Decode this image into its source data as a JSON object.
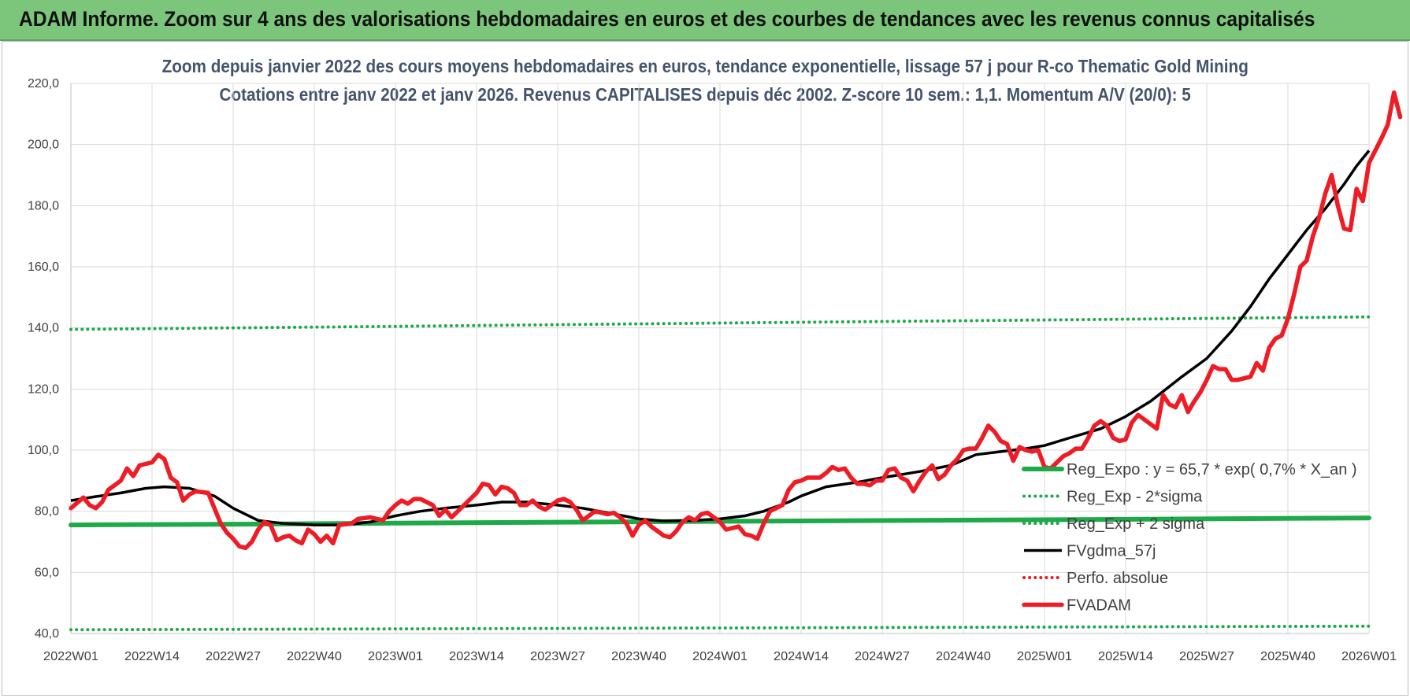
{
  "header": {
    "banner": "ADAM Informe. Zoom sur 4 ans des valorisations hebdomadaires en euros et des courbes de tendances avec les revenus connus capitalisés"
  },
  "chart_data": {
    "type": "line",
    "title": "Zoom depuis janvier 2022 des cours moyens hebdomadaires en euros, tendance exponentielle, lissage 57 j pour R-co Thematic Gold Mining",
    "subtitle": "Cotations entre janv 2022 et janv 2026. Revenus CAPITALISES depuis déc 2002. Z-score 10 sem.: 1,1. Momentum A/V (20/0): 5",
    "ylim": [
      40,
      220
    ],
    "y_ticks": [
      "220,0",
      "200,0",
      "180,0",
      "160,0",
      "140,0",
      "120,0",
      "100,0",
      "80,0",
      "60,0",
      "40,0"
    ],
    "x_ticks": [
      "2022W01",
      "2022W14",
      "2022W27",
      "2022W40",
      "2023W01",
      "2023W14",
      "2023W27",
      "2023W40",
      "2024W01",
      "2024W14",
      "2024W27",
      "2024W40",
      "2025W01",
      "2025W14",
      "2025W27",
      "2025W40",
      "2026W01"
    ],
    "x_tick_index": [
      0,
      13,
      26,
      39,
      52,
      65,
      78,
      91,
      104,
      117,
      130,
      143,
      156,
      169,
      182,
      195,
      208
    ],
    "grid": true,
    "legend_position": "right",
    "series": [
      {
        "name": "Reg_Expo : y = 65,7 * exp( 0,7% *  X_an )",
        "style": "solid-thick",
        "color": "#1faa4a",
        "points": [
          [
            0,
            75.5
          ],
          [
            30,
            75.8
          ],
          [
            52,
            76.1
          ],
          [
            104,
            76.7
          ],
          [
            156,
            77.2
          ],
          [
            208,
            77.8
          ]
        ]
      },
      {
        "name": "Reg_Exp - 2*sigma",
        "style": "dotted",
        "color": "#1faa4a",
        "points": [
          [
            0,
            41.2
          ],
          [
            104,
            41.8
          ],
          [
            208,
            42.4
          ]
        ]
      },
      {
        "name": "Reg_Exp + 2 sigma",
        "style": "dotted",
        "color": "#1faa4a",
        "points": [
          [
            0,
            139.5
          ],
          [
            52,
            140.5
          ],
          [
            104,
            141.6
          ],
          [
            156,
            142.6
          ],
          [
            208,
            143.6
          ]
        ]
      },
      {
        "name": "FVgdma_57j",
        "style": "solid",
        "color": "#000000",
        "points": [
          [
            0,
            83.5
          ],
          [
            4,
            84.8
          ],
          [
            8,
            86
          ],
          [
            12,
            87.5
          ],
          [
            15,
            88
          ],
          [
            19,
            87.5
          ],
          [
            23,
            85
          ],
          [
            26,
            81
          ],
          [
            30,
            77
          ],
          [
            34,
            76
          ],
          [
            39,
            75.5
          ],
          [
            44,
            75.5
          ],
          [
            48,
            76.5
          ],
          [
            52,
            78.5
          ],
          [
            56,
            80
          ],
          [
            60,
            81
          ],
          [
            65,
            82
          ],
          [
            69,
            83
          ],
          [
            73,
            83
          ],
          [
            78,
            82
          ],
          [
            82,
            81
          ],
          [
            86,
            79.5
          ],
          [
            91,
            77.5
          ],
          [
            95,
            76.8
          ],
          [
            100,
            77
          ],
          [
            104,
            77.5
          ],
          [
            108,
            78.5
          ],
          [
            111,
            80
          ],
          [
            115,
            83
          ],
          [
            117,
            85
          ],
          [
            121,
            88
          ],
          [
            126,
            89.5
          ],
          [
            130,
            91
          ],
          [
            136,
            93
          ],
          [
            141,
            95
          ],
          [
            145,
            98.5
          ],
          [
            149,
            99.5
          ],
          [
            153,
            100.5
          ],
          [
            156,
            101.5
          ],
          [
            160,
            104
          ],
          [
            165,
            107
          ],
          [
            169,
            111
          ],
          [
            173,
            116
          ],
          [
            178,
            124
          ],
          [
            182,
            130
          ],
          [
            186,
            139
          ],
          [
            189,
            147
          ],
          [
            192,
            156
          ],
          [
            195,
            164
          ],
          [
            198,
            172
          ],
          [
            201,
            179
          ],
          [
            204,
            187
          ],
          [
            206,
            193
          ],
          [
            208,
            198
          ]
        ]
      },
      {
        "name": "Perfo. absolue",
        "style": "dotted",
        "color": "#e81e25",
        "points": []
      },
      {
        "name": "FVADAM",
        "style": "solid-thick",
        "color": "#ee1c25",
        "points": [
          [
            0,
            81
          ],
          [
            2,
            84.5
          ],
          [
            3,
            82
          ],
          [
            4,
            81
          ],
          [
            5,
            83
          ],
          [
            6,
            87
          ],
          [
            8,
            90
          ],
          [
            9,
            94
          ],
          [
            10,
            91.5
          ],
          [
            11,
            95
          ],
          [
            12,
            95.5
          ],
          [
            13,
            96
          ],
          [
            14,
            98.5
          ],
          [
            15,
            97
          ],
          [
            16,
            91
          ],
          [
            17,
            89.5
          ],
          [
            18,
            83.5
          ],
          [
            19,
            85.5
          ],
          [
            20,
            86.5
          ],
          [
            22,
            86
          ],
          [
            23,
            81
          ],
          [
            24,
            76
          ],
          [
            25,
            73
          ],
          [
            26,
            71
          ],
          [
            27,
            68.5
          ],
          [
            28,
            68
          ],
          [
            29,
            70
          ],
          [
            30,
            74
          ],
          [
            31,
            76.5
          ],
          [
            32,
            75.5
          ],
          [
            33,
            70.5
          ],
          [
            34,
            71.5
          ],
          [
            35,
            72
          ],
          [
            36,
            70.5
          ],
          [
            37,
            69.5
          ],
          [
            38,
            74
          ],
          [
            39,
            72.5
          ],
          [
            40,
            70
          ],
          [
            41,
            72
          ],
          [
            42,
            69.5
          ],
          [
            43,
            75.5
          ],
          [
            45,
            76
          ],
          [
            46,
            77.5
          ],
          [
            48,
            78
          ],
          [
            50,
            77
          ],
          [
            51,
            80
          ],
          [
            52,
            82
          ],
          [
            53,
            83.5
          ],
          [
            54,
            82.5
          ],
          [
            55,
            84
          ],
          [
            56,
            84
          ],
          [
            57,
            83
          ],
          [
            58,
            82
          ],
          [
            59,
            78.5
          ],
          [
            60,
            80.5
          ],
          [
            61,
            78
          ],
          [
            62,
            80
          ],
          [
            63,
            82
          ],
          [
            64,
            84
          ],
          [
            65,
            86
          ],
          [
            66,
            89
          ],
          [
            67,
            88.5
          ],
          [
            68,
            85.5
          ],
          [
            69,
            88
          ],
          [
            70,
            87.5
          ],
          [
            71,
            86
          ],
          [
            72,
            82
          ],
          [
            73,
            82
          ],
          [
            74,
            83.5
          ],
          [
            75,
            81.5
          ],
          [
            76,
            80.5
          ],
          [
            77,
            82
          ],
          [
            78,
            83.5
          ],
          [
            79,
            84
          ],
          [
            80,
            83
          ],
          [
            81,
            80.5
          ],
          [
            82,
            77
          ],
          [
            83,
            78.5
          ],
          [
            84,
            80
          ],
          [
            85,
            79.5
          ],
          [
            86,
            79
          ],
          [
            87,
            79.5
          ],
          [
            88,
            78
          ],
          [
            89,
            76
          ],
          [
            90,
            72
          ],
          [
            91,
            75.5
          ],
          [
            92,
            77
          ],
          [
            93,
            75
          ],
          [
            94,
            73.5
          ],
          [
            95,
            72
          ],
          [
            96,
            71.5
          ],
          [
            97,
            73.5
          ],
          [
            98,
            76.5
          ],
          [
            99,
            78
          ],
          [
            100,
            77
          ],
          [
            101,
            79
          ],
          [
            102,
            79.5
          ],
          [
            103,
            78
          ],
          [
            104,
            76.5
          ],
          [
            105,
            74
          ],
          [
            106,
            74.5
          ],
          [
            107,
            75
          ],
          [
            108,
            72.5
          ],
          [
            109,
            72
          ],
          [
            110,
            71
          ],
          [
            111,
            76
          ],
          [
            112,
            80
          ],
          [
            113,
            81
          ],
          [
            114,
            82
          ],
          [
            115,
            87
          ],
          [
            116,
            89.5
          ],
          [
            117,
            90
          ],
          [
            118,
            91
          ],
          [
            120,
            91
          ],
          [
            121,
            92.5
          ],
          [
            122,
            94.5
          ],
          [
            123,
            93.5
          ],
          [
            124,
            94
          ],
          [
            125,
            91
          ],
          [
            126,
            89
          ],
          [
            127,
            89
          ],
          [
            128,
            88.5
          ],
          [
            129,
            90
          ],
          [
            130,
            90
          ],
          [
            131,
            93.5
          ],
          [
            132,
            94
          ],
          [
            133,
            91
          ],
          [
            134,
            90
          ],
          [
            135,
            86.5
          ],
          [
            136,
            90
          ],
          [
            137,
            93
          ],
          [
            138,
            95
          ],
          [
            139,
            90.5
          ],
          [
            140,
            92
          ],
          [
            141,
            95
          ],
          [
            142,
            97
          ],
          [
            143,
            100
          ],
          [
            144,
            100.5
          ],
          [
            145,
            100.5
          ],
          [
            146,
            104
          ],
          [
            147,
            108
          ],
          [
            148,
            106
          ],
          [
            149,
            103
          ],
          [
            150,
            102
          ],
          [
            151,
            96.5
          ],
          [
            152,
            101
          ],
          [
            153,
            100
          ],
          [
            154,
            99.5
          ],
          [
            155,
            100
          ],
          [
            156,
            94.5
          ],
          [
            157,
            94
          ],
          [
            158,
            96
          ],
          [
            159,
            98
          ],
          [
            160,
            99
          ],
          [
            161,
            100.5
          ],
          [
            162,
            100.5
          ],
          [
            163,
            104
          ],
          [
            164,
            108
          ],
          [
            165,
            109.5
          ],
          [
            166,
            108
          ],
          [
            167,
            104
          ],
          [
            168,
            103
          ],
          [
            169,
            103.5
          ],
          [
            170,
            109
          ],
          [
            171,
            111.5
          ],
          [
            172,
            110
          ],
          [
            173,
            108.5
          ],
          [
            174,
            107
          ],
          [
            175,
            118
          ],
          [
            176,
            115
          ],
          [
            177,
            114
          ],
          [
            178,
            118
          ],
          [
            179,
            112.5
          ],
          [
            180,
            116
          ],
          [
            181,
            119
          ],
          [
            182,
            123
          ],
          [
            183,
            127.5
          ],
          [
            184,
            126.5
          ],
          [
            185,
            126.5
          ],
          [
            186,
            123
          ],
          [
            187,
            123
          ],
          [
            188,
            123.5
          ],
          [
            189,
            124
          ],
          [
            190,
            128.5
          ],
          [
            191,
            126
          ],
          [
            192,
            133.5
          ],
          [
            193,
            136.5
          ],
          [
            194,
            137.5
          ],
          [
            195,
            143
          ],
          [
            196,
            151
          ],
          [
            197,
            160
          ],
          [
            198,
            162
          ],
          [
            199,
            170
          ],
          [
            200,
            176
          ],
          [
            201,
            184
          ],
          [
            202,
            190
          ],
          [
            203,
            180
          ],
          [
            204,
            172.5
          ],
          [
            205,
            172
          ],
          [
            206,
            185.5
          ],
          [
            207,
            181.5
          ],
          [
            208,
            194
          ],
          [
            209,
            198
          ],
          [
            210,
            202
          ],
          [
            211,
            206.5
          ],
          [
            212,
            217
          ],
          [
            213,
            209
          ]
        ]
      }
    ]
  }
}
